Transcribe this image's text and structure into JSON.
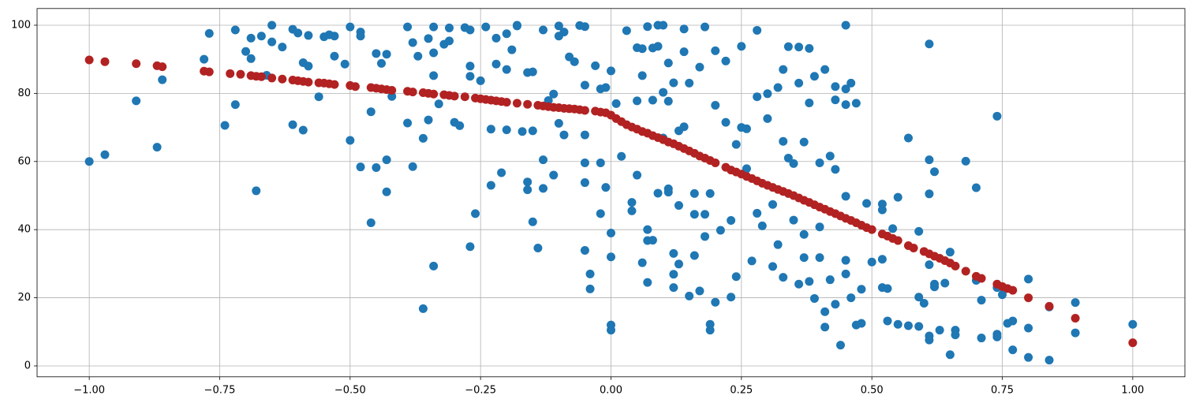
{
  "chart_data": {
    "type": "scatter",
    "grid": true,
    "xlim": [
      -1.1,
      1.1
    ],
    "ylim": [
      -3.2,
      104.9
    ],
    "xticks": [
      {
        "value": -1,
        "label": "−1.00"
      },
      {
        "value": -0.75,
        "label": "−0.75"
      },
      {
        "value": -0.5,
        "label": "−0.50"
      },
      {
        "value": -0.25,
        "label": "−0.25"
      },
      {
        "value": 0,
        "label": "0.00"
      },
      {
        "value": 0.25,
        "label": "0.25"
      },
      {
        "value": 0.5,
        "label": "0.50"
      },
      {
        "value": 0.75,
        "label": "0.75"
      },
      {
        "value": 1,
        "label": "1.00"
      }
    ],
    "yticks": [
      0,
      20,
      40,
      60,
      80,
      100
    ],
    "series": [
      {
        "color": "#1f77b4",
        "x": [
          -1,
          -0.97,
          -0.91,
          -0.87,
          -0.86,
          -0.78,
          -0.77,
          -0.74,
          -0.72,
          -0.72,
          -0.7,
          -0.69,
          -0.69,
          -0.68,
          -0.67,
          -0.66,
          -0.65,
          -0.65,
          -0.63,
          -0.61,
          -0.61,
          -0.6,
          -0.59,
          -0.59,
          -0.58,
          -0.58,
          -0.56,
          -0.55,
          -0.54,
          -0.53,
          -0.53,
          -0.51,
          -0.5,
          -0.5,
          -0.48,
          -0.48,
          -0.48,
          -0.46,
          -0.46,
          -0.45,
          -0.45,
          -0.44,
          -0.43,
          -0.43,
          -0.43,
          -0.42,
          -0.39,
          -0.39,
          -0.38,
          -0.38,
          -0.37,
          -0.36,
          -0.36,
          -0.35,
          -0.35,
          -0.34,
          -0.34,
          -0.34,
          -0.34,
          -0.33,
          -0.32,
          -0.31,
          -0.31,
          -0.3,
          -0.29,
          -0.28,
          -0.27,
          -0.27,
          -0.27,
          -0.27,
          -0.26,
          -0.25,
          -0.24,
          -0.23,
          -0.23,
          -0.22,
          -0.22,
          -0.21,
          -0.2,
          -0.2,
          -0.2,
          -0.19,
          -0.18,
          -0.18,
          -0.17,
          -0.16,
          -0.16,
          -0.16,
          -0.15,
          -0.15,
          -0.15,
          -0.14,
          -0.13,
          -0.13,
          -0.13,
          -0.12,
          -0.11,
          -0.11,
          -0.1,
          -0.1,
          -0.1,
          -0.09,
          -0.09,
          -0.08,
          -0.07,
          -0.06,
          -0.05,
          -0.05,
          -0.05,
          -0.05,
          -0.05,
          -0.05,
          -0.04,
          -0.04,
          -0.03,
          -0.02,
          -0.02,
          -0.02,
          -0.01,
          -0.01,
          0,
          0,
          0,
          0,
          0,
          0.01,
          0.02,
          0.03,
          0.04,
          0.04,
          0.05,
          0.05,
          0.05,
          0.06,
          0.06,
          0.06,
          0.07,
          0.07,
          0.07,
          0.07,
          0.08,
          0.08,
          0.08,
          0.09,
          0.09,
          0.09,
          0.1,
          0.1,
          0.1,
          0.11,
          0.11,
          0.11,
          0.11,
          0.12,
          0.12,
          0.12,
          0.12,
          0.13,
          0.13,
          0.13,
          0.14,
          0.14,
          0.14,
          0.15,
          0.15,
          0.16,
          0.16,
          0.16,
          0.17,
          0.17,
          0.18,
          0.18,
          0.18,
          0.19,
          0.19,
          0.19,
          0.2,
          0.2,
          0.2,
          0.21,
          0.22,
          0.22,
          0.23,
          0.23,
          0.24,
          0.24,
          0.25,
          0.25,
          0.26,
          0.26,
          0.27,
          0.28,
          0.28,
          0.28,
          0.29,
          0.3,
          0.3,
          0.31,
          0.31,
          0.32,
          0.32,
          0.33,
          0.33,
          0.33,
          0.34,
          0.34,
          0.35,
          0.35,
          0.36,
          0.36,
          0.36,
          0.37,
          0.37,
          0.37,
          0.38,
          0.38,
          0.38,
          0.39,
          0.39,
          0.4,
          0.4,
          0.4,
          0.41,
          0.41,
          0.41,
          0.42,
          0.42,
          0.43,
          0.43,
          0.43,
          0.43,
          0.44,
          0.45,
          0.45,
          0.45,
          0.45,
          0.45,
          0.45,
          0.46,
          0.46,
          0.47,
          0.47,
          0.48,
          0.48,
          0.49,
          0.5,
          0.52,
          0.52,
          0.52,
          0.52,
          0.53,
          0.53,
          0.54,
          0.55,
          0.55,
          0.57,
          0.57,
          0.59,
          0.59,
          0.59,
          0.6,
          0.61,
          0.61,
          0.61,
          0.61,
          0.61,
          0.61,
          0.62,
          0.62,
          0.62,
          0.63,
          0.64,
          0.65,
          0.65,
          0.66,
          0.66,
          0.68,
          0.7,
          0.7,
          0.71,
          0.71,
          0.74,
          0.74,
          0.74,
          0.74,
          0.75,
          0.76,
          0.77,
          0.77,
          0.8,
          0.8,
          0.8,
          0.84,
          0.84,
          0.89,
          0.89,
          1
        ],
        "values": [
          60,
          62,
          77.8,
          64.2,
          84,
          90,
          97.6,
          70.6,
          76.7,
          98.6,
          92.3,
          90.2,
          96.2,
          51.4,
          96.8,
          85.3,
          95.1,
          100,
          93.6,
          98.8,
          70.8,
          97.7,
          89,
          69.2,
          88,
          97,
          79,
          96.6,
          97.2,
          90.9,
          96.8,
          88.6,
          99.5,
          66.2,
          98,
          58.4,
          96.8,
          42,
          74.6,
          91.7,
          58.2,
          88.8,
          91.5,
          60.5,
          51.1,
          79.1,
          71.3,
          99.5,
          58.5,
          94.9,
          90.9,
          66.8,
          16.8,
          72.2,
          96.1,
          29.3,
          85.2,
          91.9,
          99.5,
          76.9,
          94.4,
          95.4,
          99.2,
          71.5,
          70.5,
          99.3,
          98.6,
          88,
          85,
          35,
          44.7,
          83.7,
          99.5,
          53,
          69.5,
          96.2,
          88.6,
          56.7,
          97.5,
          69.3,
          87,
          92.8,
          99.8,
          100,
          68.8,
          86.1,
          54,
          51.7,
          69,
          42.3,
          86.3,
          34.6,
          60.5,
          52.1,
          98.6,
          77.9,
          79.8,
          56,
          71.2,
          99.8,
          96.8,
          67.8,
          98,
          90.7,
          89.3,
          99.9,
          99.6,
          82.4,
          67.8,
          59.6,
          53.8,
          33.9,
          27,
          22.6,
          88.1,
          81.3,
          59.6,
          44.7,
          81.7,
          52.4,
          86.6,
          39,
          32,
          12,
          10.5,
          77,
          61.5,
          98.4,
          48,
          45.5,
          56,
          93.4,
          77.8,
          85.2,
          93.1,
          30.3,
          99.6,
          36.8,
          40,
          24.5,
          93.3,
          78,
          36.9,
          100,
          93.8,
          50.7,
          100,
          80.3,
          66.9,
          51,
          77.7,
          88.9,
          52,
          83.1,
          33,
          26.9,
          23,
          69,
          47.1,
          29.9,
          98.9,
          92.2,
          70.2,
          83,
          20.5,
          50.6,
          32.4,
          44.5,
          22,
          87.7,
          44.5,
          99.5,
          38,
          12.2,
          10.5,
          50.6,
          18.7,
          76.5,
          92.5,
          39.8,
          71.5,
          89.5,
          20.2,
          42.7,
          65,
          26.2,
          70,
          93.8,
          57.9,
          69.6,
          30.8,
          79,
          44.8,
          98.5,
          41.1,
          79.9,
          72.6,
          47.4,
          29.2,
          81.7,
          35.6,
          87,
          26,
          65.9,
          61,
          93.7,
          42.8,
          59.4,
          93.6,
          83,
          24,
          65.7,
          38.6,
          31.8,
          93.2,
          77.2,
          24.8,
          85,
          19.8,
          59.6,
          31.8,
          40.8,
          87,
          15.9,
          11.4,
          61.6,
          25.3,
          82,
          78.1,
          57.7,
          18.1,
          6.1,
          100,
          81.3,
          76.7,
          49.8,
          31,
          27,
          83,
          20,
          77.1,
          12,
          22.5,
          12.5,
          47.7,
          30.5,
          47.5,
          45.8,
          23,
          31.3,
          22.7,
          13.2,
          40.3,
          49.5,
          12.2,
          66.9,
          11.8,
          39.5,
          20.2,
          11.6,
          18.4,
          94.5,
          60.5,
          50.5,
          29.7,
          8.8,
          7.6,
          57,
          24,
          23.2,
          10.5,
          24.3,
          33.4,
          3.3,
          10.5,
          9.1,
          60.1,
          52.3,
          25.1,
          19.3,
          8.2,
          73.3,
          23,
          9.3,
          8.5,
          20.9,
          12.5,
          13.2,
          4.7,
          25.5,
          11.1,
          2.5,
          1.7,
          17.3,
          18.6,
          9.7,
          12.2
        ]
      },
      {
        "color": "#b22222",
        "x": [
          -1,
          -0.97,
          -0.91,
          -0.87,
          -0.86,
          -0.78,
          -0.77,
          -0.73,
          -0.71,
          -0.69,
          -0.68,
          -0.67,
          -0.65,
          -0.63,
          -0.61,
          -0.6,
          -0.59,
          -0.58,
          -0.56,
          -0.55,
          -0.54,
          -0.53,
          -0.5,
          -0.49,
          -0.46,
          -0.45,
          -0.44,
          -0.43,
          -0.42,
          -0.39,
          -0.38,
          -0.36,
          -0.35,
          -0.34,
          -0.32,
          -0.31,
          -0.3,
          -0.28,
          -0.26,
          -0.25,
          -0.24,
          -0.23,
          -0.22,
          -0.21,
          -0.2,
          -0.18,
          -0.16,
          -0.14,
          -0.13,
          -0.12,
          -0.11,
          -0.1,
          -0.09,
          -0.08,
          -0.07,
          -0.06,
          -0.05,
          -0.03,
          -0.02,
          -0.01,
          0,
          0.01,
          0.02,
          0.03,
          0.04,
          0.05,
          0.06,
          0.07,
          0.08,
          0.09,
          0.1,
          0.11,
          0.12,
          0.13,
          0.14,
          0.15,
          0.16,
          0.17,
          0.18,
          0.19,
          0.2,
          0.22,
          0.23,
          0.24,
          0.25,
          0.26,
          0.27,
          0.28,
          0.29,
          0.3,
          0.31,
          0.32,
          0.33,
          0.34,
          0.35,
          0.36,
          0.37,
          0.38,
          0.39,
          0.4,
          0.41,
          0.42,
          0.43,
          0.44,
          0.45,
          0.46,
          0.47,
          0.48,
          0.49,
          0.5,
          0.52,
          0.53,
          0.54,
          0.55,
          0.57,
          0.58,
          0.6,
          0.61,
          0.62,
          0.63,
          0.64,
          0.65,
          0.66,
          0.68,
          0.7,
          0.71,
          0.74,
          0.75,
          0.76,
          0.77,
          0.8,
          0.84,
          0.89,
          1
        ],
        "values": [
          89.8,
          89.3,
          88.7,
          88.1,
          87.8,
          86.5,
          86.3,
          85.8,
          85.6,
          85.2,
          85,
          84.9,
          84.5,
          84.2,
          83.9,
          83.7,
          83.5,
          83.3,
          83.1,
          83,
          82.8,
          82.6,
          82.3,
          82,
          81.7,
          81.5,
          81.3,
          81.1,
          80.9,
          80.6,
          80.4,
          80.2,
          80,
          79.8,
          79.6,
          79.4,
          79.2,
          79,
          78.6,
          78.4,
          78.2,
          78,
          77.8,
          77.6,
          77.4,
          77.1,
          76.8,
          76.5,
          76.3,
          76.1,
          75.9,
          75.8,
          75.6,
          75.5,
          75.4,
          75.2,
          75,
          74.8,
          74.5,
          74.3,
          73.6,
          72.6,
          71.7,
          70.8,
          70.1,
          69.5,
          68.8,
          68.3,
          67.6,
          67,
          66.4,
          65.7,
          65.2,
          64.5,
          63.8,
          63.1,
          62.4,
          61.6,
          61,
          60.3,
          59.6,
          58.3,
          57.5,
          56.9,
          56.3,
          55.6,
          55,
          54.3,
          53.6,
          53,
          52.4,
          51.8,
          51.2,
          50.6,
          50,
          49.3,
          48.6,
          48,
          47.3,
          46.6,
          46,
          45.3,
          44.7,
          44,
          43.3,
          42.7,
          42,
          41.3,
          40.6,
          40,
          38.7,
          38.1,
          37.4,
          36.8,
          35.3,
          34.6,
          33.6,
          32.9,
          32.2,
          31.6,
          30.9,
          30.2,
          29.3,
          27.8,
          26.3,
          25.7,
          24,
          23.3,
          22.7,
          22.2,
          20,
          17.5,
          14,
          6.8
        ]
      }
    ]
  }
}
